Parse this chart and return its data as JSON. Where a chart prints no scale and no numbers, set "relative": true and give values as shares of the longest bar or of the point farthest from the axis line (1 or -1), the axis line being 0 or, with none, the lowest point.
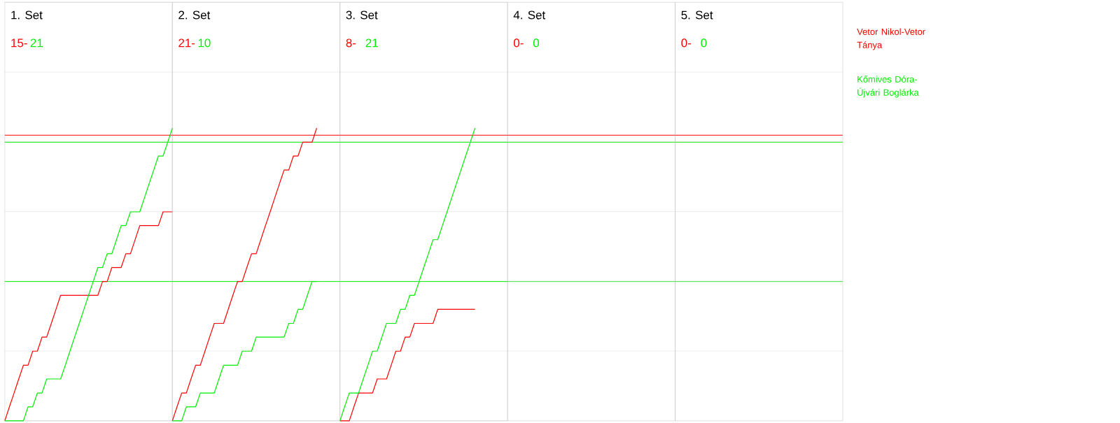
{
  "chart_data": [
    {
      "type": "line",
      "title": "1. Set",
      "annotations": [
        "15-",
        "21"
      ],
      "relative": true,
      "categories": [
        null,
        null,
        null,
        null,
        null,
        null,
        null,
        null,
        null,
        null,
        null,
        null,
        null,
        null,
        null,
        null,
        null,
        null,
        null,
        null,
        null,
        null,
        null,
        null,
        null,
        null,
        null,
        null,
        null,
        null,
        null,
        null,
        null,
        null,
        null,
        null,
        null
      ],
      "grid": "y",
      "marker": "none",
      "line_style": "solid",
      "ref_lines": [
        {
          "axis": "y",
          "value": 0.976,
          "color": "#ff0000"
        },
        {
          "axis": "y",
          "value": 0.952,
          "color": "#00ee00"
        },
        {
          "axis": "y",
          "value": 0.476,
          "color": "#00ee00"
        }
      ],
      "series": [
        {
          "name": "Vetor Nikol-Vetor Tánya",
          "color": "#ff0000",
          "values": [
            0,
            0.048,
            0.095,
            0.143,
            0.19,
            0.19,
            0.238,
            0.238,
            0.286,
            0.286,
            0.333,
            0.381,
            0.429,
            0.429,
            0.429,
            0.429,
            0.429,
            0.429,
            0.429,
            0.429,
            0.429,
            0.476,
            0.476,
            0.524,
            0.524,
            0.524,
            0.571,
            0.571,
            0.619,
            0.667,
            0.667,
            0.667,
            0.667,
            0.667,
            0.714,
            0.714,
            0.714
          ]
        },
        {
          "name": "Kőmives Dóra-Újvári Boglárka",
          "color": "#00ee00",
          "values": [
            0,
            0,
            0,
            0,
            0,
            0.048,
            0.048,
            0.095,
            0.095,
            0.143,
            0.143,
            0.143,
            0.143,
            0.19,
            0.238,
            0.286,
            0.333,
            0.381,
            0.429,
            0.476,
            0.524,
            0.524,
            0.571,
            0.571,
            0.619,
            0.667,
            0.667,
            0.714,
            0.714,
            0.714,
            0.762,
            0.81,
            0.857,
            0.905,
            0.905,
            0.952,
            1
          ]
        }
      ]
    },
    {
      "type": "line",
      "title": "2. Set",
      "annotations": [
        "21-",
        "10"
      ],
      "relative": true,
      "categories": [
        null,
        null,
        null,
        null,
        null,
        null,
        null,
        null,
        null,
        null,
        null,
        null,
        null,
        null,
        null,
        null,
        null,
        null,
        null,
        null,
        null,
        null,
        null,
        null,
        null,
        null,
        null,
        null,
        null,
        null,
        null,
        null,
        null,
        null,
        null,
        null,
        null
      ],
      "grid": "y",
      "marker": "none",
      "line_style": "solid",
      "ref_lines": [
        {
          "axis": "y",
          "value": 0.976,
          "color": "#ff0000"
        },
        {
          "axis": "y",
          "value": 0.952,
          "color": "#00ee00"
        },
        {
          "axis": "y",
          "value": 0.476,
          "color": "#00ee00"
        }
      ],
      "series": [
        {
          "color": "#ff0000",
          "values": [
            0,
            0.048,
            0.095,
            0.095,
            0.143,
            0.19,
            0.19,
            0.238,
            0.286,
            0.333,
            0.333,
            0.333,
            0.381,
            0.429,
            0.476,
            0.476,
            0.524,
            0.571,
            0.571,
            0.619,
            0.667,
            0.714,
            0.762,
            0.81,
            0.857,
            0.857,
            0.905,
            0.905,
            0.952,
            0.952,
            0.952,
            1,
            null,
            null,
            null,
            null,
            null
          ]
        },
        {
          "color": "#00ee00",
          "values": [
            0,
            0,
            0,
            0.048,
            0.048,
            0.048,
            0.095,
            0.095,
            0.095,
            0.095,
            0.143,
            0.19,
            0.19,
            0.19,
            0.19,
            0.238,
            0.238,
            0.238,
            0.286,
            0.286,
            0.286,
            0.286,
            0.286,
            0.286,
            0.286,
            0.333,
            0.333,
            0.381,
            0.381,
            0.429,
            0.476,
            0.476,
            null,
            null,
            null,
            null,
            null
          ]
        }
      ]
    },
    {
      "type": "line",
      "title": "3. Set",
      "annotations": [
        "8-",
        "21"
      ],
      "relative": true,
      "categories": [
        null,
        null,
        null,
        null,
        null,
        null,
        null,
        null,
        null,
        null,
        null,
        null,
        null,
        null,
        null,
        null,
        null,
        null,
        null,
        null,
        null,
        null,
        null,
        null,
        null,
        null,
        null,
        null,
        null,
        null,
        null,
        null,
        null,
        null,
        null,
        null,
        null
      ],
      "grid": "y",
      "marker": "none",
      "line_style": "solid",
      "ref_lines": [
        {
          "axis": "y",
          "value": 0.976,
          "color": "#ff0000"
        },
        {
          "axis": "y",
          "value": 0.952,
          "color": "#00ee00"
        },
        {
          "axis": "y",
          "value": 0.476,
          "color": "#00ee00"
        }
      ],
      "series": [
        {
          "color": "#ff0000",
          "values": [
            0,
            0,
            0,
            0.048,
            0.095,
            0.095,
            0.095,
            0.095,
            0.143,
            0.143,
            0.143,
            0.19,
            0.238,
            0.238,
            0.286,
            0.286,
            0.333,
            0.333,
            0.333,
            0.333,
            0.333,
            0.381,
            0.381,
            0.381,
            0.381,
            0.381,
            0.381,
            0.381,
            0.381,
            0.381,
            null,
            null,
            null,
            null,
            null,
            null,
            null
          ]
        },
        {
          "color": "#00ee00",
          "values": [
            0,
            0.048,
            0.095,
            0.095,
            0.095,
            0.143,
            0.19,
            0.238,
            0.238,
            0.286,
            0.333,
            0.333,
            0.333,
            0.381,
            0.381,
            0.429,
            0.429,
            0.476,
            0.524,
            0.571,
            0.619,
            0.619,
            0.667,
            0.714,
            0.762,
            0.81,
            0.857,
            0.905,
            0.952,
            1,
            null,
            null,
            null,
            null,
            null,
            null,
            null
          ]
        }
      ]
    },
    {
      "type": "other",
      "title": "4. Set",
      "annotations": [
        "0-",
        "0"
      ]
    },
    {
      "type": "other",
      "title": "5. Set",
      "annotations": [
        "0-",
        "0"
      ]
    }
  ]
}
